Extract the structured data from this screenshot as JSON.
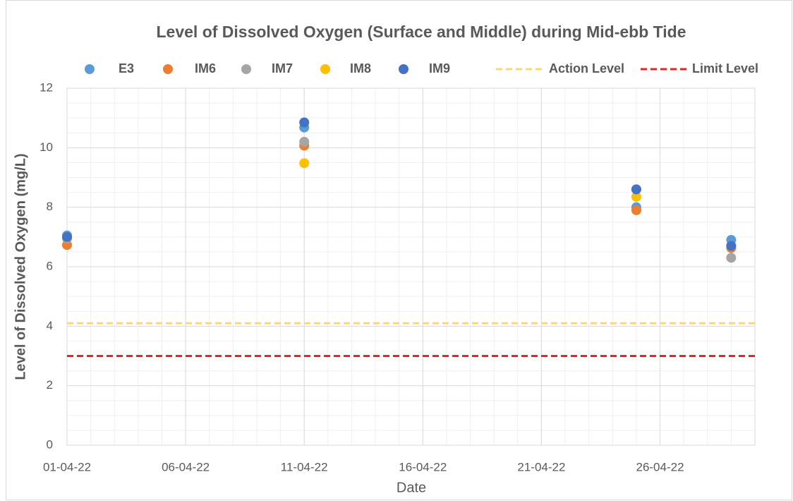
{
  "chart_data": {
    "type": "scatter",
    "title": "Level of Dissolved Oxygen (Surface and Middle) during Mid-ebb Tide",
    "x_label": "Date",
    "y_label": "Level of Dissolved Oxygen (mg/L)",
    "xlim": [
      "01-04-22",
      "30-04-22"
    ],
    "xticks": [
      "01-04-22",
      "06-04-22",
      "11-04-22",
      "16-04-22",
      "21-04-22",
      "26-04-22"
    ],
    "ylim": [
      0,
      12
    ],
    "yticks": [
      0,
      2,
      4,
      6,
      8,
      10,
      12
    ],
    "grid": true,
    "minor_grid": true,
    "legend": "top",
    "series": [
      {
        "name": "E3",
        "color": "#5b9bd5",
        "x": [
          "01-04-22",
          "11-04-22",
          "25-04-22",
          "29-04-22"
        ],
        "values": [
          7.05,
          10.68,
          8.0,
          6.9
        ]
      },
      {
        "name": "IM6",
        "color": "#ed7d31",
        "x": [
          "01-04-22",
          "11-04-22",
          "25-04-22",
          "29-04-22"
        ],
        "values": [
          6.73,
          10.07,
          7.9,
          6.63
        ]
      },
      {
        "name": "IM7",
        "color": "#a5a5a5",
        "x": [
          "01-04-22",
          "11-04-22",
          "25-04-22",
          "29-04-22"
        ],
        "values": [
          6.95,
          10.2,
          8.6,
          6.3
        ]
      },
      {
        "name": "IM8",
        "color": "#ffc000",
        "x": [
          "01-04-22",
          "11-04-22",
          "25-04-22",
          "29-04-22"
        ],
        "values": [
          7.0,
          9.48,
          8.35,
          6.7
        ]
      },
      {
        "name": "IM9",
        "color": "#4472c4",
        "x": [
          "01-04-22",
          "11-04-22",
          "25-04-22",
          "29-04-22"
        ],
        "values": [
          7.0,
          10.85,
          8.6,
          6.7
        ]
      },
      {
        "name": "Action Level",
        "color": "#ffd966",
        "line": "dashed",
        "x": [
          "01-04-22",
          "30-04-22"
        ],
        "values": [
          4.1,
          4.1
        ]
      },
      {
        "name": "Limit Level",
        "color": "#e0262a",
        "line": "dashed",
        "x": [
          "01-04-22",
          "30-04-22"
        ],
        "values": [
          3.0,
          3.0
        ]
      }
    ]
  }
}
